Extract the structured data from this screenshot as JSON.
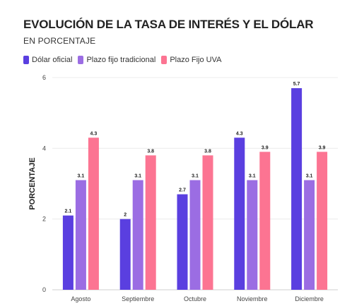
{
  "chart_data": {
    "type": "bar",
    "title": "EVOLUCIÓN DE LA TASA DE INTERÉS Y EL DÓLAR",
    "subtitle": "EN PORCENTAJE",
    "xlabel": "",
    "ylabel": "PORCENTAJE",
    "ylim": [
      0,
      6
    ],
    "yticks": [
      0,
      2,
      4,
      6
    ],
    "grid": true,
    "legend_position": "top-left",
    "categories": [
      "Agosto",
      "Septiembre",
      "Octubre",
      "Noviembre",
      "Diciembre"
    ],
    "series": [
      {
        "name": "Dólar oficial",
        "color": "#5a3fe0",
        "values": [
          2.1,
          2,
          2.7,
          4.3,
          5.7
        ]
      },
      {
        "name": "Plazo fijo tradicional",
        "color": "#9b6de3",
        "values": [
          3.1,
          3.1,
          3.1,
          3.1,
          3.1
        ]
      },
      {
        "name": "Plazo Fijo UVA",
        "color": "#fc7492",
        "values": [
          4.3,
          3.8,
          3.8,
          3.9,
          3.9
        ]
      }
    ]
  }
}
